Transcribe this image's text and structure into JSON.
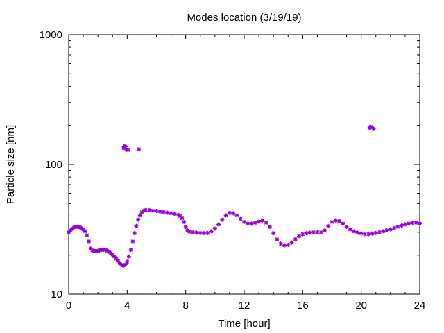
{
  "chart_data": {
    "type": "scatter",
    "title": "Modes location (3/19/19)",
    "xlabel": "Time [hour]",
    "ylabel": "Particle size [nm]",
    "xlim": [
      0,
      24
    ],
    "ylim": [
      10,
      1000
    ],
    "yscale": "log",
    "grid": false,
    "x_ticks": [
      0,
      4,
      8,
      12,
      16,
      20,
      24
    ],
    "x_tick_labels": [
      "0",
      "4",
      "8",
      "12",
      "16",
      "20",
      "24"
    ],
    "y_ticks": [
      10,
      100,
      1000
    ],
    "y_tick_labels": [
      "10",
      "100",
      "1000"
    ],
    "marker": "star",
    "colors": {
      "series": "#9400d3",
      "axis": "#000000"
    },
    "series": [
      {
        "points": [
          [
            0.0,
            30.0
          ],
          [
            0.12,
            31.0
          ],
          [
            0.25,
            32.0
          ],
          [
            0.38,
            32.8
          ],
          [
            0.5,
            33.0
          ],
          [
            0.62,
            33.0
          ],
          [
            0.75,
            32.8
          ],
          [
            0.88,
            32.3
          ],
          [
            1.0,
            31.5
          ],
          [
            1.12,
            30.5
          ],
          [
            1.25,
            28.5
          ],
          [
            1.38,
            25.5
          ],
          [
            1.5,
            22.5
          ],
          [
            1.62,
            21.8
          ],
          [
            1.75,
            21.5
          ],
          [
            1.88,
            21.6
          ],
          [
            2.0,
            21.5
          ],
          [
            2.12,
            21.8
          ],
          [
            2.25,
            22.0
          ],
          [
            2.38,
            22.0
          ],
          [
            2.5,
            22.0
          ],
          [
            2.62,
            21.6
          ],
          [
            2.75,
            21.2
          ],
          [
            2.88,
            20.8
          ],
          [
            3.0,
            20.2
          ],
          [
            3.12,
            19.5
          ],
          [
            3.25,
            18.7
          ],
          [
            3.38,
            18.0
          ],
          [
            3.5,
            17.3
          ],
          [
            3.62,
            16.8
          ],
          [
            3.75,
            16.6
          ],
          [
            3.88,
            16.9
          ],
          [
            4.0,
            17.8
          ],
          [
            4.12,
            19.5
          ],
          [
            4.25,
            22.0
          ],
          [
            4.38,
            25.5
          ],
          [
            4.5,
            29.5
          ],
          [
            4.62,
            33.5
          ],
          [
            4.75,
            37.5
          ],
          [
            4.88,
            40.5
          ],
          [
            5.0,
            42.8
          ],
          [
            5.12,
            44.0
          ],
          [
            5.25,
            44.5
          ],
          [
            5.5,
            44.5
          ],
          [
            5.75,
            44.0
          ],
          [
            6.0,
            43.8
          ],
          [
            6.25,
            43.3
          ],
          [
            6.5,
            43.0
          ],
          [
            6.75,
            42.5
          ],
          [
            7.0,
            42.0
          ],
          [
            7.25,
            41.5
          ],
          [
            7.5,
            40.8
          ],
          [
            7.62,
            40.0
          ],
          [
            7.75,
            38.5
          ],
          [
            7.88,
            36.0
          ],
          [
            8.0,
            33.0
          ],
          [
            8.12,
            31.0
          ],
          [
            8.25,
            30.3
          ],
          [
            8.5,
            30.0
          ],
          [
            8.75,
            29.8
          ],
          [
            9.0,
            29.6
          ],
          [
            9.25,
            29.5
          ],
          [
            9.5,
            29.6
          ],
          [
            9.75,
            30.5
          ],
          [
            10.0,
            32.0
          ],
          [
            10.25,
            34.5
          ],
          [
            10.5,
            37.5
          ],
          [
            10.75,
            40.5
          ],
          [
            11.0,
            42.3
          ],
          [
            11.25,
            42.0
          ],
          [
            11.5,
            40.5
          ],
          [
            11.75,
            38.0
          ],
          [
            12.0,
            36.0
          ],
          [
            12.25,
            35.0
          ],
          [
            12.5,
            35.0
          ],
          [
            12.75,
            35.5
          ],
          [
            13.0,
            36.2
          ],
          [
            13.25,
            37.0
          ],
          [
            13.5,
            35.5
          ],
          [
            13.75,
            33.0
          ],
          [
            14.0,
            29.5
          ],
          [
            14.25,
            26.5
          ],
          [
            14.5,
            24.5
          ],
          [
            14.75,
            23.8
          ],
          [
            15.0,
            24.0
          ],
          [
            15.25,
            25.0
          ],
          [
            15.5,
            26.5
          ],
          [
            15.75,
            28.0
          ],
          [
            16.0,
            29.0
          ],
          [
            16.25,
            29.5
          ],
          [
            16.5,
            29.8
          ],
          [
            16.75,
            30.0
          ],
          [
            17.0,
            30.0
          ],
          [
            17.25,
            30.0
          ],
          [
            17.5,
            31.0
          ],
          [
            17.75,
            33.5
          ],
          [
            18.0,
            36.0
          ],
          [
            18.25,
            37.0
          ],
          [
            18.5,
            36.5
          ],
          [
            18.75,
            35.0
          ],
          [
            19.0,
            33.0
          ],
          [
            19.25,
            31.5
          ],
          [
            19.5,
            30.5
          ],
          [
            19.75,
            29.8
          ],
          [
            20.0,
            29.4
          ],
          [
            20.25,
            29.0
          ],
          [
            20.5,
            29.0
          ],
          [
            20.75,
            29.3
          ],
          [
            21.0,
            29.6
          ],
          [
            21.25,
            30.0
          ],
          [
            21.5,
            30.5
          ],
          [
            21.75,
            31.0
          ],
          [
            22.0,
            31.6
          ],
          [
            22.25,
            32.3
          ],
          [
            22.5,
            33.0
          ],
          [
            22.75,
            33.8
          ],
          [
            23.0,
            34.5
          ],
          [
            23.25,
            35.0
          ],
          [
            23.5,
            35.5
          ],
          [
            23.75,
            35.5
          ],
          [
            24.0,
            35.0
          ],
          [
            3.75,
            134
          ],
          [
            3.82,
            139
          ],
          [
            3.88,
            137
          ],
          [
            3.95,
            130
          ],
          [
            4.05,
            129
          ],
          [
            4.8,
            131
          ],
          [
            20.55,
            191
          ],
          [
            20.65,
            195
          ],
          [
            20.75,
            193
          ],
          [
            20.85,
            188
          ]
        ]
      }
    ]
  }
}
